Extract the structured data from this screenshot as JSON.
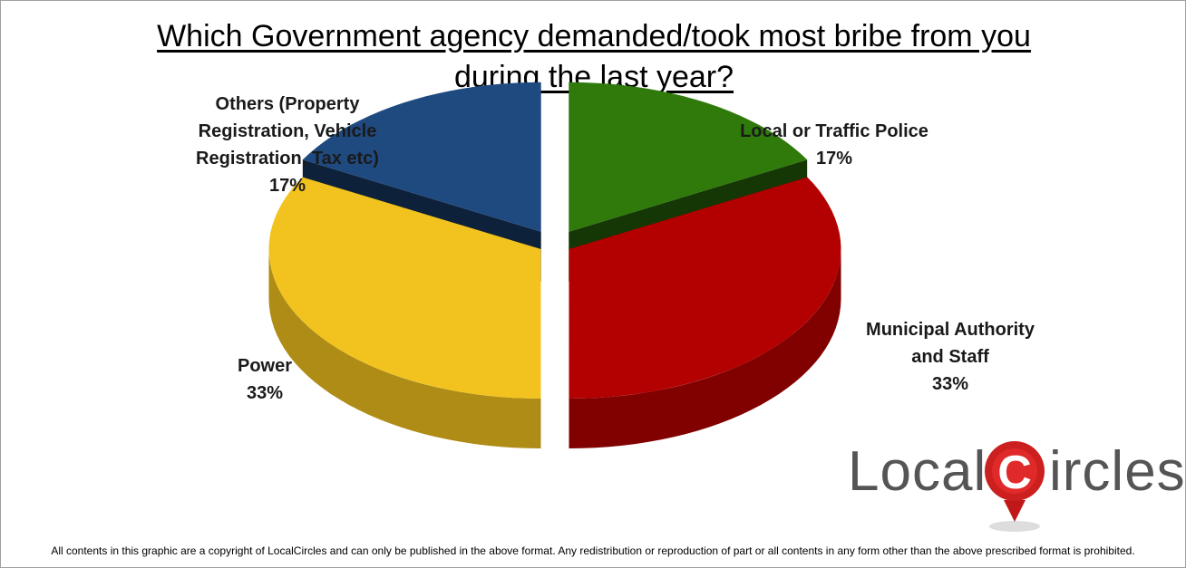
{
  "chart_data": {
    "type": "pie",
    "title_lines": [
      "Which Government agency demanded/took most bribe from you",
      "during the last year?"
    ],
    "slices": [
      {
        "label_lines": [
          "Local or Traffic Police"
        ],
        "value": 17,
        "display": "17%",
        "color": "#2f7a0b"
      },
      {
        "label_lines": [
          "Municipal Authority",
          "and Staff"
        ],
        "value": 33,
        "display": "33%",
        "color": "#b30000"
      },
      {
        "label_lines": [
          "Power"
        ],
        "value": 33,
        "display": "33%",
        "color": "#f2c31f"
      },
      {
        "label_lines": [
          "Others (Property",
          "Registration, Vehicle",
          "Registration, Tax etc)"
        ],
        "value": 17,
        "display": "17%",
        "color": "#1f4a80"
      }
    ]
  },
  "branding": {
    "logo_left": "Local",
    "logo_letter": "C",
    "logo_right": "ircles",
    "logo_accent": "#cc1f1f"
  },
  "footer": {
    "text": "All contents in this graphic are a copyright of LocalCircles and can only be published in the above format. Any redistribution or reproduction of part or all contents in any form other than the above prescribed format is prohibited."
  }
}
